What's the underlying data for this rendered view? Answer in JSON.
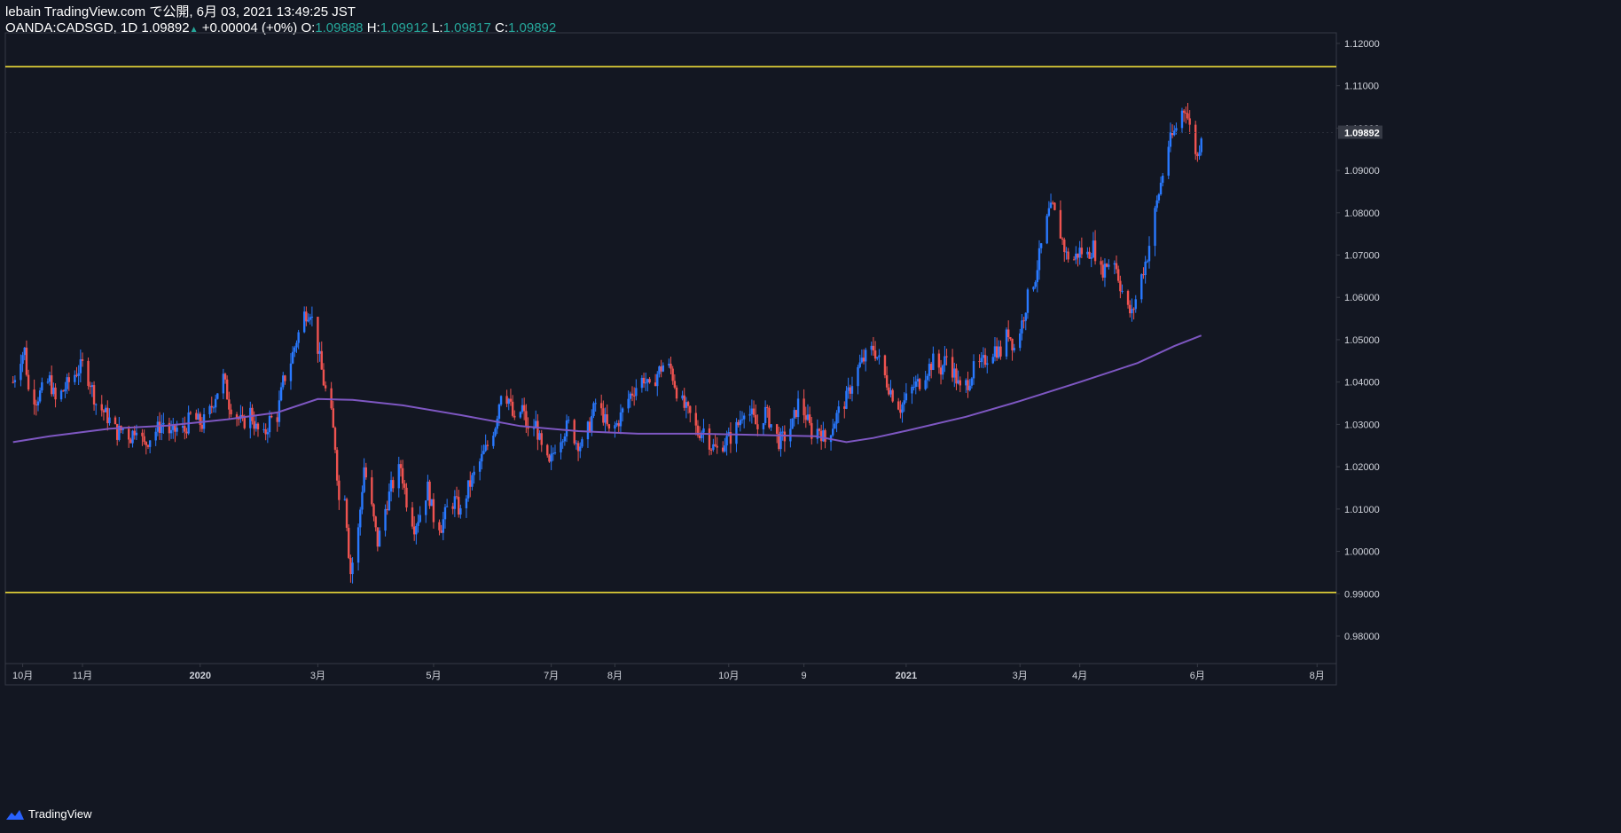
{
  "header": {
    "publish_line": "lebain TradingView.com で公開, 6月 03, 2021 13:49:25 JST",
    "symbol": "OANDA:CADSGD, 1D",
    "last_price": "1.09892",
    "change": "+0.00004 (+0%)",
    "open_label": "O:",
    "open_value": "1.09888",
    "high_label": "H:",
    "high_value": "1.09912",
    "low_label": "L:",
    "low_value": "1.09817",
    "close_label": "C:",
    "close_value": "1.09892"
  },
  "footer": {
    "brand": "TradingView"
  },
  "colors": {
    "background": "#131722",
    "up": "#2979ff",
    "down": "#ef5350",
    "ma": "#7e57c2",
    "hline": "#ffeb3b",
    "text": "#d1d4dc"
  },
  "chart_data": {
    "type": "candlestick",
    "symbol": "OANDA:CADSGD",
    "interval": "1D",
    "ylim": [
      0.9735,
      1.1225
    ],
    "y_ticks": [
      "1.12000",
      "1.11000",
      "1.10000",
      "1.09000",
      "1.08000",
      "1.07000",
      "1.06000",
      "1.05000",
      "1.04000",
      "1.03000",
      "1.02000",
      "1.01000",
      "1.00000",
      "0.99000",
      "0.98000"
    ],
    "last_price_label": "1.09892",
    "x_ticks": [
      {
        "label": "10月",
        "date": "2019-10-01"
      },
      {
        "label": "11月",
        "date": "2019-11-01"
      },
      {
        "label": "2020",
        "date": "2020-01-01"
      },
      {
        "label": "3月",
        "date": "2020-03-02"
      },
      {
        "label": "5月",
        "date": "2020-05-01"
      },
      {
        "label": "7月",
        "date": "2020-07-01"
      },
      {
        "label": "8月",
        "date": "2020-08-03"
      },
      {
        "label": "10月",
        "date": "2020-10-01"
      },
      {
        "label": "9",
        "date": "2020-11-09"
      },
      {
        "label": "2021",
        "date": "2021-01-01"
      },
      {
        "label": "3月",
        "date": "2021-03-01"
      },
      {
        "label": "4月",
        "date": "2021-04-01"
      },
      {
        "label": "6月",
        "date": "2021-06-01"
      },
      {
        "label": "8月",
        "date": "2021-08-02"
      }
    ],
    "horizontal_lines": [
      1.1145,
      0.9903
    ],
    "close_path": [
      [
        "2019-09-26",
        1.04
      ],
      [
        "2019-09-30",
        1.046
      ],
      [
        "2019-10-02",
        1.0475
      ],
      [
        "2019-10-04",
        1.038
      ],
      [
        "2019-10-08",
        1.036
      ],
      [
        "2019-10-11",
        1.038
      ],
      [
        "2019-10-15",
        1.0405
      ],
      [
        "2019-10-18",
        1.0355
      ],
      [
        "2019-10-22",
        1.038
      ],
      [
        "2019-10-25",
        1.04
      ],
      [
        "2019-10-29",
        1.0425
      ],
      [
        "2019-11-01",
        1.044
      ],
      [
        "2019-11-05",
        1.04
      ],
      [
        "2019-11-08",
        1.035
      ],
      [
        "2019-11-12",
        1.033
      ],
      [
        "2019-11-15",
        1.031
      ],
      [
        "2019-11-19",
        1.028
      ],
      [
        "2019-11-22",
        1.029
      ],
      [
        "2019-11-26",
        1.027
      ],
      [
        "2019-11-29",
        1.03
      ],
      [
        "2019-12-03",
        1.025
      ],
      [
        "2019-12-06",
        1.027
      ],
      [
        "2019-12-10",
        1.029
      ],
      [
        "2019-12-13",
        1.0305
      ],
      [
        "2019-12-17",
        1.0275
      ],
      [
        "2019-12-20",
        1.029
      ],
      [
        "2019-12-24",
        1.0285
      ],
      [
        "2019-12-27",
        1.032
      ],
      [
        "2020-01-02",
        1.03
      ],
      [
        "2020-01-06",
        1.033
      ],
      [
        "2020-01-09",
        1.037
      ],
      [
        "2020-01-13",
        1.041
      ],
      [
        "2020-01-16",
        1.035
      ],
      [
        "2020-01-20",
        1.032
      ],
      [
        "2020-01-23",
        1.03
      ],
      [
        "2020-01-27",
        1.033
      ],
      [
        "2020-01-30",
        1.029
      ],
      [
        "2020-02-03",
        1.027
      ],
      [
        "2020-02-06",
        1.031
      ],
      [
        "2020-02-10",
        1.032
      ],
      [
        "2020-02-13",
        1.04
      ],
      [
        "2020-02-17",
        1.045
      ],
      [
        "2020-02-20",
        1.05
      ],
      [
        "2020-02-24",
        1.056
      ],
      [
        "2020-02-27",
        1.057
      ],
      [
        "2020-03-02",
        1.048
      ],
      [
        "2020-03-05",
        1.04
      ],
      [
        "2020-03-09",
        1.032
      ],
      [
        "2020-03-11",
        1.025
      ],
      [
        "2020-03-13",
        1.012
      ],
      [
        "2020-03-16",
        1.014
      ],
      [
        "2020-03-18",
        1.0
      ],
      [
        "2020-03-19",
        0.995
      ],
      [
        "2020-03-23",
        1.005
      ],
      [
        "2020-03-26",
        1.02
      ],
      [
        "2020-03-30",
        1.01
      ],
      [
        "2020-04-02",
        1.002
      ],
      [
        "2020-04-06",
        1.01
      ],
      [
        "2020-04-09",
        1.015
      ],
      [
        "2020-04-14",
        1.02
      ],
      [
        "2020-04-17",
        1.012
      ],
      [
        "2020-04-21",
        1.006
      ],
      [
        "2020-04-24",
        1.009
      ],
      [
        "2020-04-28",
        1.015
      ],
      [
        "2020-05-01",
        1.008
      ],
      [
        "2020-05-05",
        1.006
      ],
      [
        "2020-05-08",
        1.01
      ],
      [
        "2020-05-12",
        1.012
      ],
      [
        "2020-05-15",
        1.009
      ],
      [
        "2020-05-19",
        1.015
      ],
      [
        "2020-05-22",
        1.018
      ],
      [
        "2020-05-26",
        1.022
      ],
      [
        "2020-05-29",
        1.025
      ],
      [
        "2020-06-02",
        1.03
      ],
      [
        "2020-06-05",
        1.038
      ],
      [
        "2020-06-09",
        1.036
      ],
      [
        "2020-06-12",
        1.03
      ],
      [
        "2020-06-16",
        1.034
      ],
      [
        "2020-06-19",
        1.028
      ],
      [
        "2020-06-23",
        1.03
      ],
      [
        "2020-06-26",
        1.024
      ],
      [
        "2020-06-30",
        1.02
      ],
      [
        "2020-07-03",
        1.025
      ],
      [
        "2020-07-07",
        1.028
      ],
      [
        "2020-07-10",
        1.03
      ],
      [
        "2020-07-14",
        1.026
      ],
      [
        "2020-07-17",
        1.025
      ],
      [
        "2020-07-21",
        1.03
      ],
      [
        "2020-07-24",
        1.035
      ],
      [
        "2020-07-28",
        1.032
      ],
      [
        "2020-07-31",
        1.028
      ],
      [
        "2020-08-04",
        1.03
      ],
      [
        "2020-08-07",
        1.033
      ],
      [
        "2020-08-11",
        1.037
      ],
      [
        "2020-08-14",
        1.039
      ],
      [
        "2020-08-18",
        1.041
      ],
      [
        "2020-08-21",
        1.038
      ],
      [
        "2020-08-25",
        1.042
      ],
      [
        "2020-08-28",
        1.044
      ],
      [
        "2020-09-01",
        1.043
      ],
      [
        "2020-09-04",
        1.038
      ],
      [
        "2020-09-08",
        1.034
      ],
      [
        "2020-09-11",
        1.032
      ],
      [
        "2020-09-15",
        1.028
      ],
      [
        "2020-09-18",
        1.029
      ],
      [
        "2020-09-22",
        1.025
      ],
      [
        "2020-09-25",
        1.024
      ],
      [
        "2020-09-29",
        1.026
      ],
      [
        "2020-10-02",
        1.027
      ],
      [
        "2020-10-06",
        1.03
      ],
      [
        "2020-10-09",
        1.034
      ],
      [
        "2020-10-13",
        1.032
      ],
      [
        "2020-10-16",
        1.029
      ],
      [
        "2020-10-20",
        1.033
      ],
      [
        "2020-10-23",
        1.03
      ],
      [
        "2020-10-27",
        1.026
      ],
      [
        "2020-10-30",
        1.027
      ],
      [
        "2020-11-03",
        1.03
      ],
      [
        "2020-11-06",
        1.035
      ],
      [
        "2020-11-10",
        1.032
      ],
      [
        "2020-11-13",
        1.028
      ],
      [
        "2020-11-17",
        1.029
      ],
      [
        "2020-11-20",
        1.026
      ],
      [
        "2020-11-24",
        1.03
      ],
      [
        "2020-11-27",
        1.033
      ],
      [
        "2020-12-01",
        1.036
      ],
      [
        "2020-12-04",
        1.04
      ],
      [
        "2020-12-08",
        1.044
      ],
      [
        "2020-12-11",
        1.046
      ],
      [
        "2020-12-15",
        1.048
      ],
      [
        "2020-12-18",
        1.045
      ],
      [
        "2020-12-22",
        1.04
      ],
      [
        "2020-12-25",
        1.037
      ],
      [
        "2020-12-29",
        1.034
      ],
      [
        "2021-01-01",
        1.036
      ],
      [
        "2021-01-05",
        1.039
      ],
      [
        "2021-01-08",
        1.04
      ],
      [
        "2021-01-12",
        1.043
      ],
      [
        "2021-01-15",
        1.045
      ],
      [
        "2021-01-19",
        1.043
      ],
      [
        "2021-01-22",
        1.046
      ],
      [
        "2021-01-26",
        1.042
      ],
      [
        "2021-01-29",
        1.038
      ],
      [
        "2021-02-02",
        1.04
      ],
      [
        "2021-02-05",
        1.043
      ],
      [
        "2021-02-09",
        1.044
      ],
      [
        "2021-02-12",
        1.046
      ],
      [
        "2021-02-16",
        1.048
      ],
      [
        "2021-02-19",
        1.047
      ],
      [
        "2021-02-23",
        1.052
      ],
      [
        "2021-02-26",
        1.048
      ],
      [
        "2021-03-02",
        1.054
      ],
      [
        "2021-03-05",
        1.06
      ],
      [
        "2021-03-09",
        1.065
      ],
      [
        "2021-03-12",
        1.072
      ],
      [
        "2021-03-16",
        1.08
      ],
      [
        "2021-03-18",
        1.081
      ],
      [
        "2021-03-22",
        1.075
      ],
      [
        "2021-03-25",
        1.07
      ],
      [
        "2021-03-29",
        1.069
      ],
      [
        "2021-04-01",
        1.071
      ],
      [
        "2021-04-05",
        1.07
      ],
      [
        "2021-04-08",
        1.072
      ],
      [
        "2021-04-12",
        1.066
      ],
      [
        "2021-04-15",
        1.068
      ],
      [
        "2021-04-19",
        1.069
      ],
      [
        "2021-04-22",
        1.063
      ],
      [
        "2021-04-26",
        1.057
      ],
      [
        "2021-04-28",
        1.056
      ],
      [
        "2021-05-03",
        1.065
      ],
      [
        "2021-05-06",
        1.07
      ],
      [
        "2021-05-10",
        1.08
      ],
      [
        "2021-05-13",
        1.087
      ],
      [
        "2021-05-17",
        1.096
      ],
      [
        "2021-05-20",
        1.099
      ],
      [
        "2021-05-24",
        1.104
      ],
      [
        "2021-05-26",
        1.105
      ],
      [
        "2021-05-28",
        1.1
      ],
      [
        "2021-06-01",
        1.093
      ],
      [
        "2021-06-03",
        1.0989
      ]
    ],
    "ma_path": [
      [
        "2019-09-26",
        1.0258
      ],
      [
        "2019-10-15",
        1.0272
      ],
      [
        "2019-11-15",
        1.029
      ],
      [
        "2019-12-15",
        1.0297
      ],
      [
        "2020-01-15",
        1.0312
      ],
      [
        "2020-02-10",
        1.0328
      ],
      [
        "2020-03-02",
        1.036
      ],
      [
        "2020-03-20",
        1.0358
      ],
      [
        "2020-04-15",
        1.0345
      ],
      [
        "2020-05-15",
        1.0322
      ],
      [
        "2020-06-15",
        1.0296
      ],
      [
        "2020-07-15",
        1.0284
      ],
      [
        "2020-08-15",
        1.0278
      ],
      [
        "2020-09-15",
        1.0278
      ],
      [
        "2020-10-15",
        1.0275
      ],
      [
        "2020-11-15",
        1.0272
      ],
      [
        "2020-12-01",
        1.0258
      ],
      [
        "2020-12-15",
        1.0268
      ],
      [
        "2021-01-01",
        1.0285
      ],
      [
        "2021-02-01",
        1.0318
      ],
      [
        "2021-03-01",
        1.0355
      ],
      [
        "2021-04-01",
        1.04
      ],
      [
        "2021-05-01",
        1.0445
      ],
      [
        "2021-05-20",
        1.0485
      ],
      [
        "2021-06-03",
        1.051
      ]
    ]
  }
}
